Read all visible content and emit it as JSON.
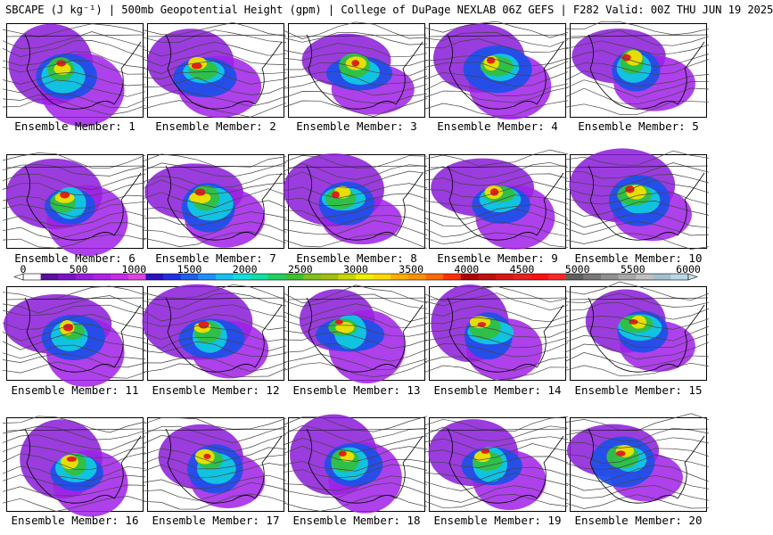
{
  "header": {
    "title": "SBCAPE (J kg⁻¹) | 500mb Geopotential Height (gpm) | College of DuPage NEXLAB 06Z GEFS | F282 Valid: 00Z THU JUN 19 2025"
  },
  "panels": [
    {
      "label": "Ensemble Member: 1"
    },
    {
      "label": "Ensemble Member: 2"
    },
    {
      "label": "Ensemble Member: 3"
    },
    {
      "label": "Ensemble Member: 4"
    },
    {
      "label": "Ensemble Member: 5"
    },
    {
      "label": "Ensemble Member: 6"
    },
    {
      "label": "Ensemble Member: 7"
    },
    {
      "label": "Ensemble Member: 8"
    },
    {
      "label": "Ensemble Member: 9"
    },
    {
      "label": "Ensemble Member: 10"
    },
    {
      "label": "Ensemble Member: 11"
    },
    {
      "label": "Ensemble Member: 12"
    },
    {
      "label": "Ensemble Member: 13"
    },
    {
      "label": "Ensemble Member: 14"
    },
    {
      "label": "Ensemble Member: 15"
    },
    {
      "label": "Ensemble Member: 16"
    },
    {
      "label": "Ensemble Member: 17"
    },
    {
      "label": "Ensemble Member: 18"
    },
    {
      "label": "Ensemble Member: 19"
    },
    {
      "label": "Ensemble Member: 20"
    }
  ],
  "colorbar": {
    "ticks": [
      "0",
      "500",
      "1000",
      "1500",
      "2000",
      "2500",
      "3000",
      "3500",
      "4000",
      "4500",
      "5000",
      "5500",
      "6000"
    ],
    "colors": [
      "#ffffff",
      "#5a0fa0",
      "#7a12c8",
      "#9a1ae0",
      "#b020e8",
      "#c82ae8",
      "#dd44e0",
      "#2a10c0",
      "#2030e0",
      "#2060f0",
      "#2090f8",
      "#18c0f0",
      "#10e0e0",
      "#10e0a0",
      "#20d060",
      "#40c030",
      "#80c020",
      "#a0c010",
      "#c8d800",
      "#f0f000",
      "#ffd800",
      "#ffb000",
      "#ff9000",
      "#ff6a00",
      "#ff3000",
      "#b00000",
      "#c01010",
      "#d81818",
      "#e82020",
      "#ff1010",
      "#ff2828",
      "#606060",
      "#787878",
      "#909090",
      "#a8a8a8",
      "#c0c0c0",
      "#a0c0d0",
      "#b8d8e8"
    ]
  }
}
